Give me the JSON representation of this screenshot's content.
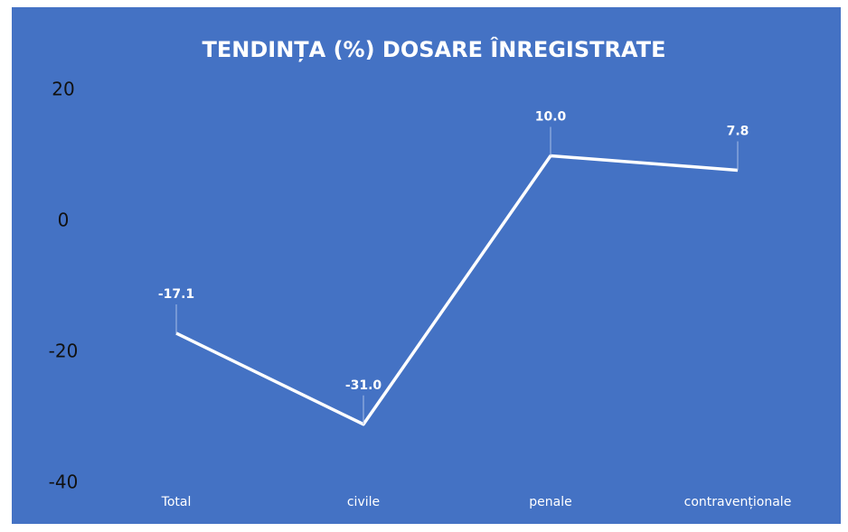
{
  "chart_data": {
    "type": "line",
    "title": "TENDINȚA (%) DOSARE ÎNREGISTRATE",
    "categories": [
      "Total",
      "civile",
      "penale",
      "contravenționale"
    ],
    "values": [
      -17.1,
      -31,
      10,
      7.8
    ],
    "value_labels": [
      "-17.1",
      "-31.0",
      "10.0",
      "7.8"
    ],
    "color": "#ffffff",
    "ylim": [
      -40,
      20
    ],
    "yticks": [
      -40,
      -20,
      0,
      20
    ],
    "grid": false
  }
}
